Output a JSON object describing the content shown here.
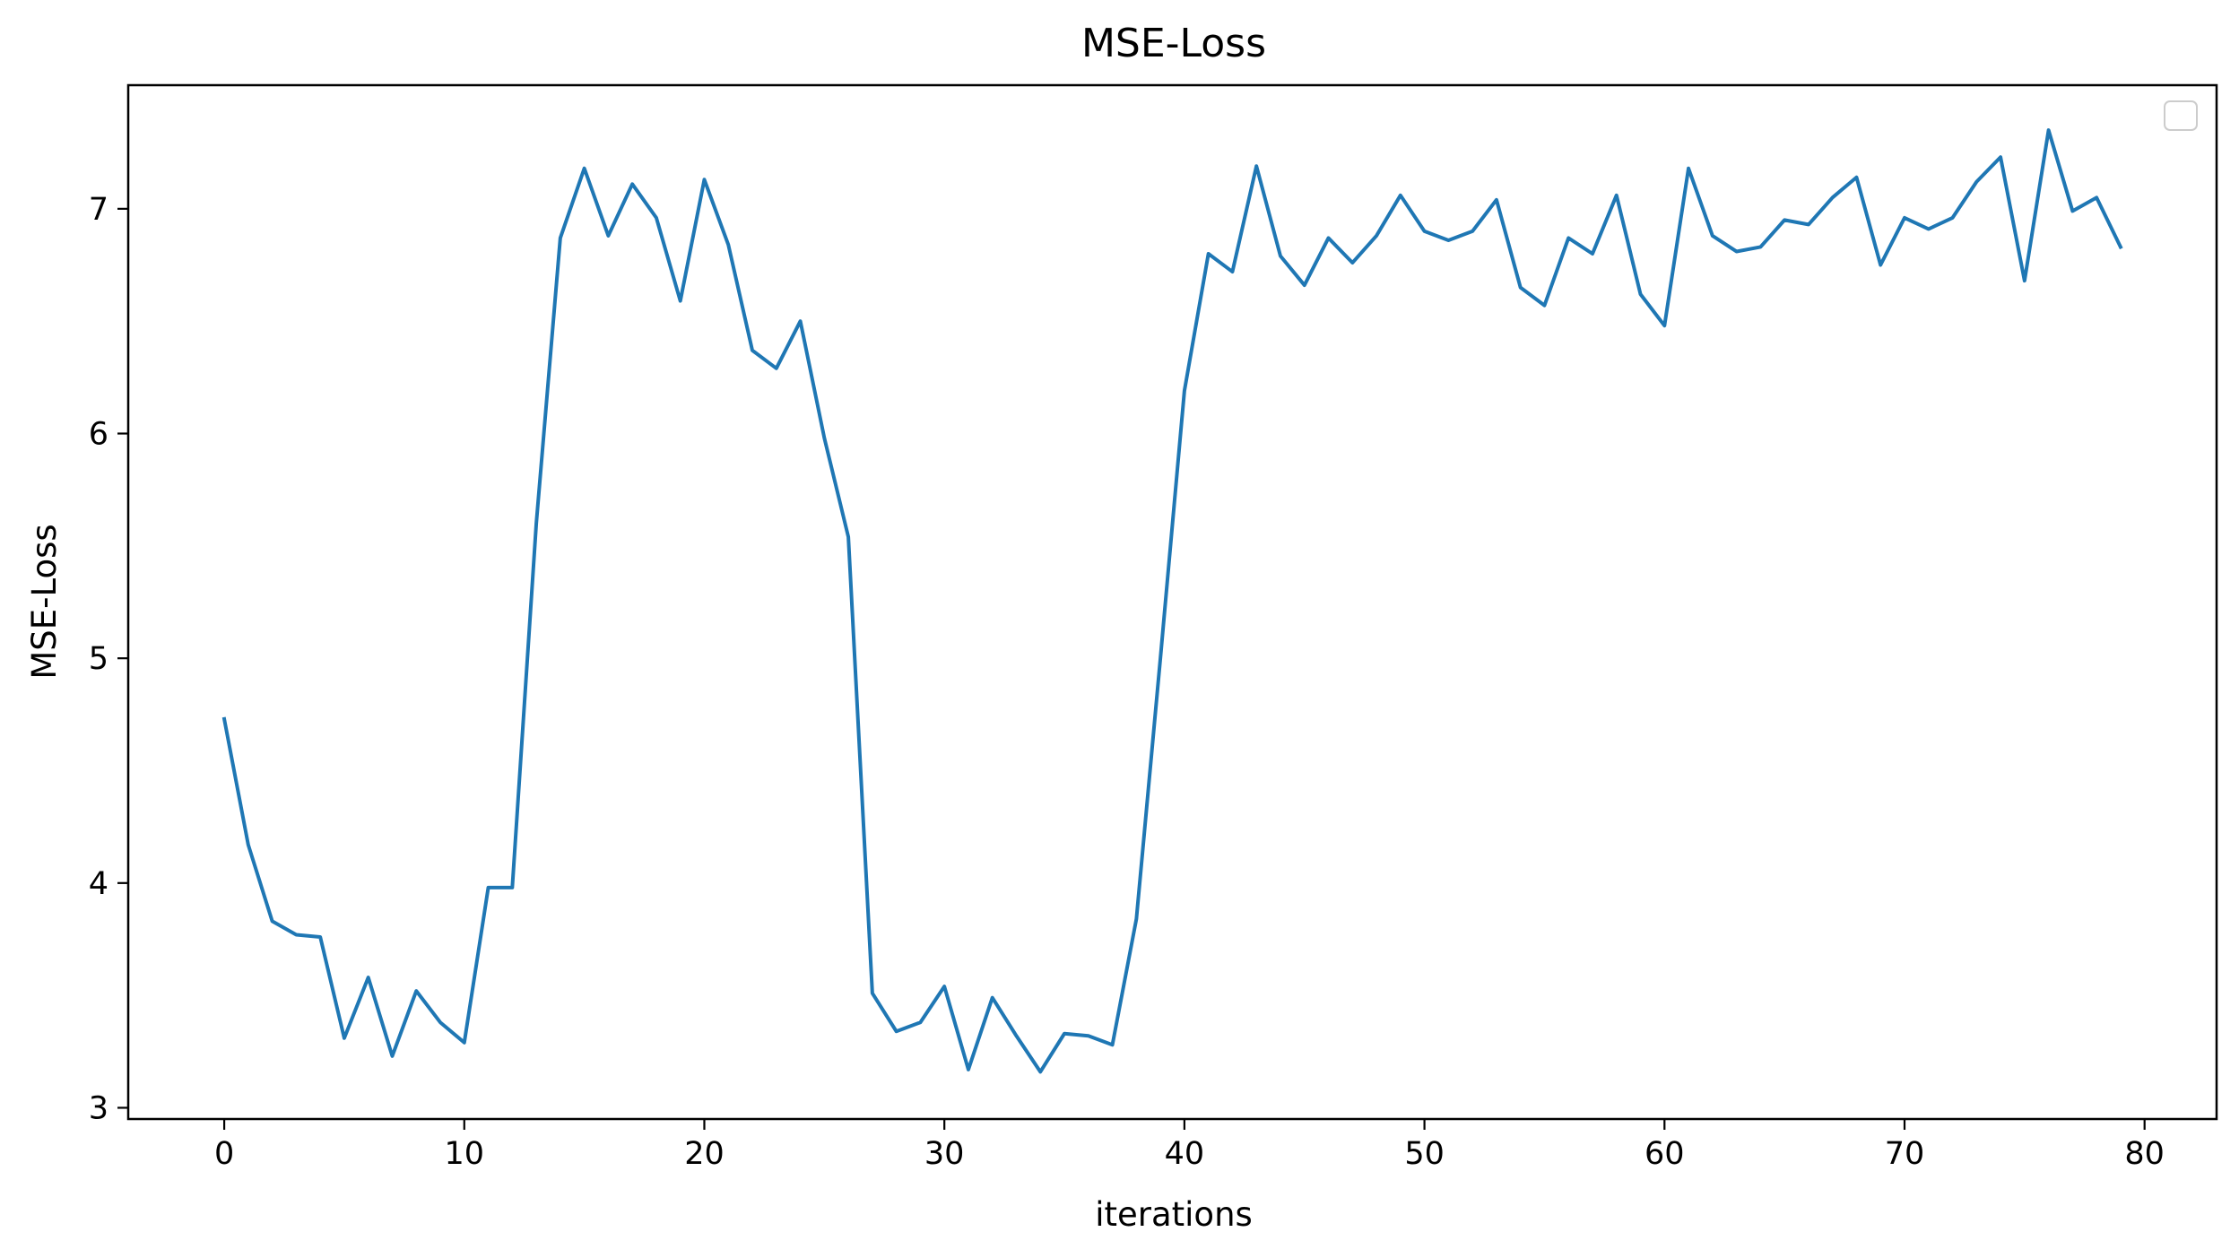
{
  "chart_data": {
    "type": "line",
    "title": "MSE-Loss",
    "xlabel": "iterations",
    "ylabel": "MSE-Loss",
    "xlim": [
      -4,
      83
    ],
    "ylim": [
      2.95,
      7.55
    ],
    "xticks": [
      0,
      10,
      20,
      30,
      40,
      50,
      60,
      70,
      80
    ],
    "yticks": [
      3,
      4,
      5,
      6,
      7
    ],
    "grid": false,
    "legend": "top-right",
    "legend_entries": [],
    "series": [
      {
        "color": "#1f77b4",
        "x": [
          0,
          1,
          2,
          3,
          4,
          5,
          6,
          7,
          8,
          9,
          10,
          11,
          12,
          13,
          14,
          15,
          16,
          17,
          18,
          19,
          20,
          21,
          22,
          23,
          24,
          25,
          26,
          27,
          28,
          29,
          30,
          31,
          32,
          33,
          34,
          35,
          36,
          37,
          38,
          39,
          40,
          41,
          42,
          43,
          44,
          45,
          46,
          47,
          48,
          49,
          50,
          51,
          52,
          53,
          54,
          55,
          56,
          57,
          58,
          59,
          60,
          61,
          62,
          63,
          64,
          65,
          66,
          67,
          68,
          69,
          70,
          71,
          72,
          73,
          74,
          75,
          76,
          77,
          78,
          79
        ],
        "values": [
          4.73,
          4.17,
          3.83,
          3.77,
          3.76,
          3.31,
          3.58,
          3.23,
          3.52,
          3.38,
          3.29,
          3.98,
          3.98,
          5.6,
          6.87,
          7.18,
          6.88,
          7.11,
          6.96,
          6.59,
          7.13,
          6.84,
          6.37,
          6.29,
          6.5,
          5.98,
          5.54,
          3.51,
          3.34,
          3.38,
          3.54,
          3.17,
          3.49,
          3.32,
          3.16,
          3.33,
          3.32,
          3.28,
          3.84,
          5.0,
          6.19,
          6.8,
          6.72,
          7.19,
          6.79,
          6.66,
          6.87,
          6.76,
          6.88,
          7.06,
          6.9,
          6.86,
          6.9,
          7.04,
          6.65,
          6.57,
          6.87,
          6.8,
          7.06,
          6.62,
          6.48,
          7.18,
          6.88,
          6.81,
          6.83,
          6.95,
          6.93,
          7.05,
          7.14,
          6.75,
          6.96,
          6.91,
          6.96,
          7.12,
          7.23,
          6.68,
          7.35,
          6.99,
          7.05,
          6.83
        ]
      }
    ]
  }
}
